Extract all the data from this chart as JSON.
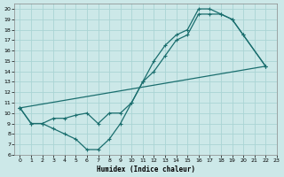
{
  "xlabel": "Humidex (Indice chaleur)",
  "xlim": [
    -0.5,
    23
  ],
  "ylim": [
    6,
    20.5
  ],
  "xticks": [
    0,
    1,
    2,
    3,
    4,
    5,
    6,
    7,
    8,
    9,
    10,
    11,
    12,
    13,
    14,
    15,
    16,
    17,
    18,
    19,
    20,
    21,
    22,
    23
  ],
  "yticks": [
    6,
    7,
    8,
    9,
    10,
    11,
    12,
    13,
    14,
    15,
    16,
    17,
    18,
    19,
    20
  ],
  "bg_color": "#cce8e8",
  "plot_bg_color": "#cce8e8",
  "line_color": "#1a6e6e",
  "grid_color": "#aad4d4",
  "line1_x": [
    0,
    1,
    2,
    3,
    4,
    5,
    6,
    7,
    8,
    9,
    10,
    11,
    12,
    13,
    14,
    15,
    16,
    17,
    18,
    19,
    20,
    22
  ],
  "line1_y": [
    10.5,
    9.0,
    9.0,
    8.5,
    8.0,
    7.5,
    6.5,
    6.5,
    7.5,
    9.0,
    11.0,
    13.0,
    15.0,
    16.5,
    17.5,
    18.0,
    20.0,
    20.0,
    19.5,
    19.0,
    17.5,
    14.5
  ],
  "line2_x": [
    0,
    1,
    2,
    3,
    4,
    5,
    6,
    7,
    8,
    9,
    10,
    11,
    12,
    13,
    14,
    15,
    16,
    17,
    18,
    19,
    20,
    22
  ],
  "line2_y": [
    10.5,
    9.0,
    9.0,
    9.5,
    9.5,
    9.8,
    10.0,
    9.0,
    10.0,
    10.0,
    11.0,
    13.0,
    14.0,
    15.5,
    17.0,
    17.5,
    19.5,
    19.5,
    19.5,
    19.0,
    17.5,
    14.5
  ],
  "line3_x": [
    0,
    22
  ],
  "line3_y": [
    10.5,
    14.5
  ]
}
